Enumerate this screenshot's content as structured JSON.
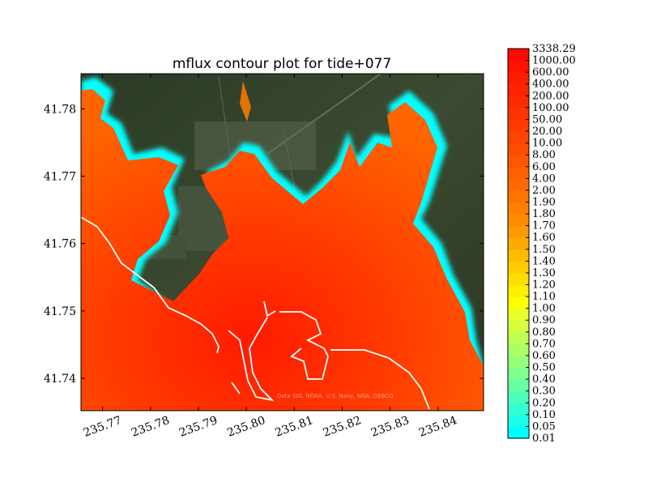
{
  "chart_data": {
    "type": "heatmap",
    "title": "mflux contour plot for tide+077",
    "xlabel": "",
    "ylabel": "",
    "xlim": [
      235.7655,
      235.8495
    ],
    "ylim": [
      41.7352,
      41.7852
    ],
    "x_ticks": [
      235.77,
      235.78,
      235.79,
      235.8,
      235.81,
      235.82,
      235.83,
      235.84
    ],
    "x_tick_labels": [
      "235.77",
      "235.78",
      "235.79",
      "235.80",
      "235.81",
      "235.82",
      "235.83",
      "235.84"
    ],
    "y_ticks": [
      41.74,
      41.75,
      41.76,
      41.77,
      41.78
    ],
    "y_tick_labels": [
      "41.74",
      "41.75",
      "41.76",
      "41.77",
      "41.78"
    ],
    "grid": false,
    "background": "satellite imagery",
    "credit": "Data SIO, NOAA, U.S. Navy, NGA, GEBCO",
    "colorbar": {
      "position": "right",
      "levels": [
        "0.01",
        "0.05",
        "0.10",
        "0.20",
        "0.30",
        "0.40",
        "0.50",
        "0.60",
        "0.70",
        "0.80",
        "0.90",
        "1.00",
        "1.10",
        "1.20",
        "1.30",
        "1.40",
        "1.50",
        "1.60",
        "1.70",
        "1.80",
        "1.90",
        "2.00",
        "4.00",
        "6.00",
        "8.00",
        "10.00",
        "20.00",
        "50.00",
        "100.00",
        "200.00",
        "400.00",
        "600.00",
        "1000.00",
        "3338.29"
      ],
      "colors": [
        "#00ffff",
        "#19ffe8",
        "#33ffd1",
        "#4dffbb",
        "#66ffa4",
        "#7fff8d",
        "#95ff7a",
        "#aaff66",
        "#bfff52",
        "#d4ff3d",
        "#e8ff29",
        "#ffff00",
        "#ffee00",
        "#ffdd00",
        "#ffcc00",
        "#ffbb00",
        "#ffaa00",
        "#ff9900",
        "#ff8c00",
        "#ff8000",
        "#ff7400",
        "#ff6a00",
        "#ff6000",
        "#ff5600",
        "#ff4d00",
        "#ff4400",
        "#ff3b00",
        "#ff3300",
        "#ff2b00",
        "#ff2300",
        "#ff1b00",
        "#ff1200",
        "#ff0a00"
      ]
    }
  }
}
